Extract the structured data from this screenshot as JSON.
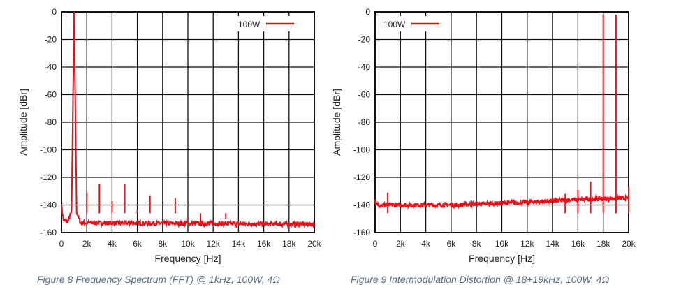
{
  "chart_data": [
    {
      "type": "line",
      "caption": "Figure 8 Frequency Spectrum (FFT) @ 1kHz, 100W, 4Ω",
      "xlabel": "Frequency [Hz]",
      "ylabel": "Amplitude [dBr]",
      "xlim": [
        0,
        20000
      ],
      "ylim": [
        -160,
        0
      ],
      "xticks": [
        "0",
        "2k",
        "4k",
        "6k",
        "8k",
        "10k",
        "12k",
        "14k",
        "16k",
        "18k",
        "20k"
      ],
      "yticks": [
        "0",
        "-20",
        "-40",
        "-60",
        "-80",
        "-100",
        "-120",
        "-140",
        "-160"
      ],
      "grid": true,
      "legend": {
        "label": "100W",
        "position": "top-right"
      },
      "series_color": "#e0121b",
      "noise_floor": [
        [
          0,
          -140
        ],
        [
          150,
          -151
        ],
        [
          500,
          -152
        ],
        [
          800,
          -145
        ],
        [
          1000,
          0
        ],
        [
          1200,
          -145
        ],
        [
          1500,
          -153
        ],
        [
          20000,
          -154
        ]
      ],
      "spikes": [
        {
          "x": 2000,
          "y": -131
        },
        {
          "x": 3000,
          "y": -125
        },
        {
          "x": 4000,
          "y": -137
        },
        {
          "x": 5000,
          "y": -125
        },
        {
          "x": 6000,
          "y": -143
        },
        {
          "x": 7000,
          "y": -133
        },
        {
          "x": 9000,
          "y": -135
        },
        {
          "x": 11000,
          "y": -152
        },
        {
          "x": 13000,
          "y": -150
        }
      ]
    },
    {
      "type": "line",
      "caption": "Figure 9 Intermodulation Distortion @ 18+19kHz, 100W, 4Ω",
      "xlabel": "Frequency [Hz]",
      "ylabel": "Amplitude [dBr]",
      "xlim": [
        0,
        20000
      ],
      "ylim": [
        -160,
        0
      ],
      "xticks": [
        "0",
        "2k",
        "4k",
        "6k",
        "8k",
        "10k",
        "12k",
        "14k",
        "16k",
        "18k",
        "20k"
      ],
      "yticks": [
        "0",
        "-20",
        "-40",
        "-60",
        "-80",
        "-100",
        "-120",
        "-140",
        "-160"
      ],
      "grid": true,
      "legend": {
        "label": "100W",
        "position": "top-left"
      },
      "series_color": "#e0121b",
      "noise_floor": [
        [
          0,
          -137
        ],
        [
          100,
          -140
        ],
        [
          6000,
          -140
        ],
        [
          12000,
          -138
        ],
        [
          16000,
          -136
        ],
        [
          20000,
          -135
        ]
      ],
      "spikes": [
        {
          "x": 1000,
          "y": -131
        },
        {
          "x": 15000,
          "y": -132
        },
        {
          "x": 16000,
          "y": -129
        },
        {
          "x": 17000,
          "y": -123
        },
        {
          "x": 18000,
          "y": -2
        },
        {
          "x": 19000,
          "y": -2
        },
        {
          "x": 20000,
          "y": -127
        }
      ]
    }
  ]
}
